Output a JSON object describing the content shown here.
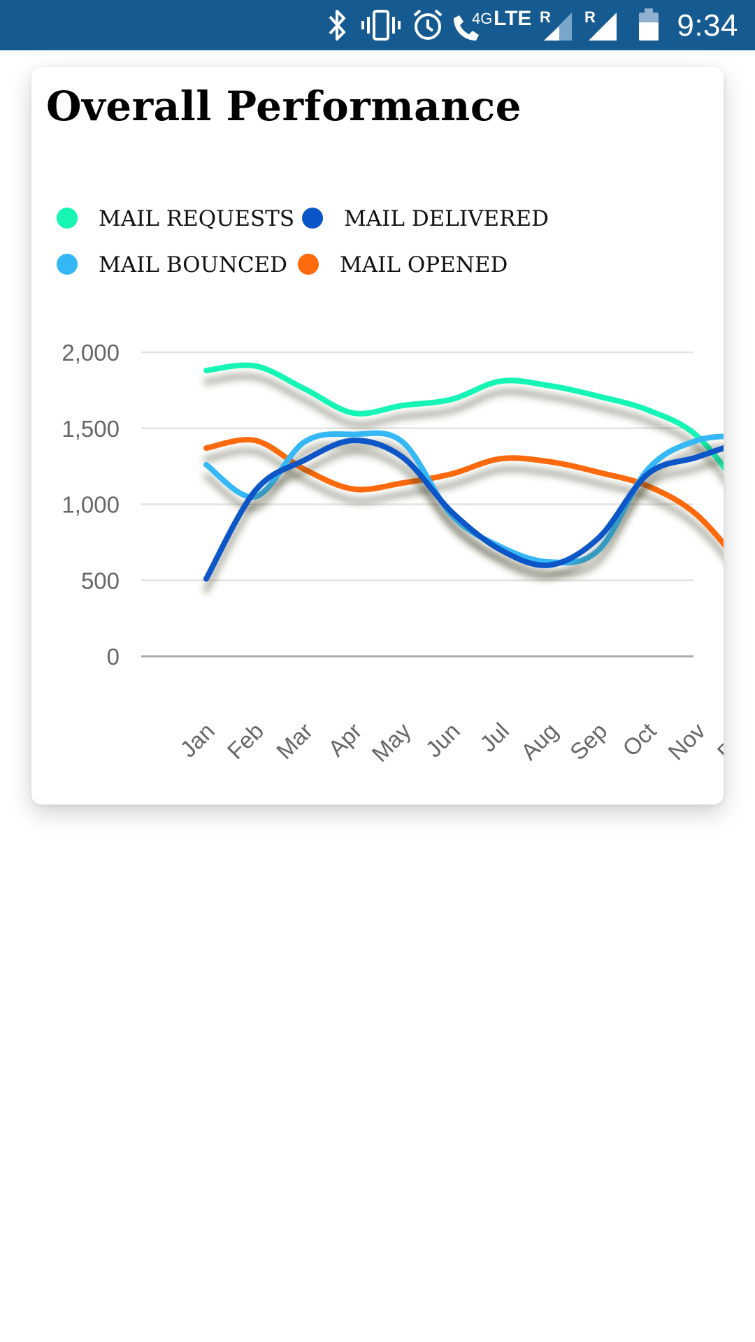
{
  "status_bar": {
    "time": "9:34",
    "icons": [
      "bluetooth-icon",
      "vibrate-icon",
      "alarm-icon",
      "wifi-calling-icon",
      "lte-icon",
      "signal-roaming-icon",
      "signal-roaming-icon",
      "battery-icon"
    ],
    "network_label": "LTE",
    "calling_label": "4G",
    "roaming_label": "R"
  },
  "chart_data": {
    "type": "line",
    "title": "Overall Performance",
    "categories": [
      "Jan",
      "Feb",
      "Mar",
      "Apr",
      "May",
      "Jun",
      "Jul",
      "Aug",
      "Sep",
      "Oct",
      "Nov",
      "Dec"
    ],
    "series": [
      {
        "name": "MAIL REQUESTS",
        "color": "#17f5b5",
        "values": [
          1880,
          1910,
          1760,
          1600,
          1650,
          1690,
          1810,
          1780,
          1710,
          1620,
          1450,
          1050
        ]
      },
      {
        "name": "MAIL DELIVERED",
        "color": "#0a56c8",
        "values": [
          510,
          1090,
          1290,
          1420,
          1310,
          950,
          700,
          600,
          780,
          1200,
          1310,
          1420
        ]
      },
      {
        "name": "MAIL BOUNCED",
        "color": "#34b8f5",
        "values": [
          1260,
          1050,
          1410,
          1460,
          1410,
          930,
          720,
          620,
          700,
          1230,
          1420,
          1450
        ]
      },
      {
        "name": "MAIL OPENED",
        "color": "#fd6b0c",
        "values": [
          1370,
          1420,
          1230,
          1100,
          1140,
          1200,
          1300,
          1280,
          1210,
          1120,
          930,
          560
        ]
      }
    ],
    "yticks": [
      "0",
      "500",
      "1,000",
      "1,500",
      "2,000"
    ],
    "ylim": [
      0,
      2000
    ],
    "grid": true,
    "legend": "top"
  }
}
